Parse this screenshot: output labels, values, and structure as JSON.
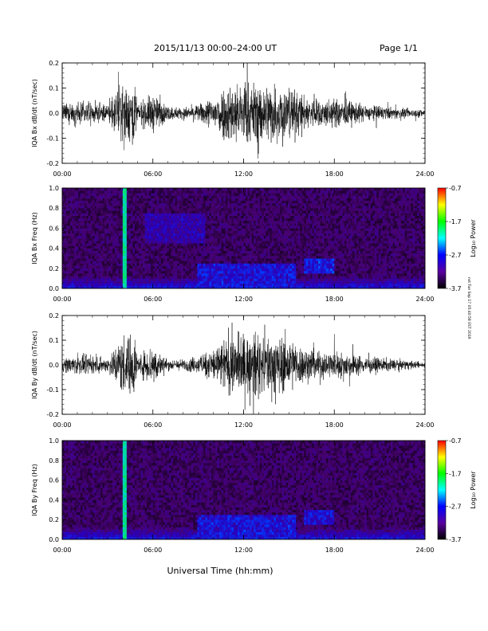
{
  "header": {
    "title": "2015/11/13  00:00–24:00 UT",
    "page": "Page 1/1"
  },
  "xaxis_label": "Universal Time (hh:mm)",
  "timestamp": "nst Tue Sep 17 05:40:58 EST 2019",
  "colorbar": {
    "label": "Log₁₀ Power",
    "ticks": [
      "-0.7",
      "-1.7",
      "-2.7",
      "-3.7"
    ],
    "colors": [
      "#ff0000",
      "#ffff00",
      "#00ff00",
      "#00ffff",
      "#0000ff",
      "#5a00a0",
      "#000000"
    ]
  },
  "chart_data": [
    {
      "type": "line",
      "title": "",
      "xlabel": "",
      "ylabel": "IQA Bx dB/dt (nT/sec)",
      "xlim": [
        "00:00",
        "24:00"
      ],
      "ylim": [
        -0.2,
        0.2
      ],
      "xticks": [
        "00:00",
        "06:00",
        "12:00",
        "18:00",
        "24:00"
      ],
      "yticks": [
        "0.2",
        "0.1",
        "0.0",
        "-0.1",
        "-0.2"
      ],
      "envelope": {
        "hours": [
          0,
          1,
          2,
          3,
          4,
          4.3,
          4.8,
          5,
          6,
          6.5,
          7,
          8,
          9,
          10,
          11,
          12,
          13,
          14,
          15,
          16,
          17,
          18,
          19,
          20,
          21,
          22,
          23,
          24
        ],
        "amplitude": [
          0.06,
          0.08,
          0.07,
          0.06,
          0.22,
          0.22,
          0.22,
          0.07,
          0.14,
          0.09,
          0.05,
          0.04,
          0.06,
          0.12,
          0.22,
          0.22,
          0.22,
          0.22,
          0.2,
          0.12,
          0.1,
          0.1,
          0.09,
          0.06,
          0.05,
          0.04,
          0.03,
          0.03
        ]
      }
    },
    {
      "type": "heatmap",
      "title": "",
      "xlabel": "",
      "ylabel": "IQA Bx Freq (Hz)",
      "xlim": [
        "00:00",
        "24:00"
      ],
      "ylim": [
        0.0,
        1.0
      ],
      "xticks": [
        "00:00",
        "06:00",
        "12:00",
        "18:00",
        "24:00"
      ],
      "yticks": [
        "1.0",
        "0.8",
        "0.6",
        "0.4",
        "0.2",
        "0.0"
      ],
      "zlim": [
        -3.7,
        -0.7
      ],
      "features": [
        {
          "hours": [
            4.0,
            4.2
          ],
          "freq": [
            0.0,
            1.0
          ],
          "level": -1.9
        },
        {
          "hours": [
            9.0,
            15.5
          ],
          "freq": [
            0.0,
            0.25
          ],
          "level": -2.6
        },
        {
          "hours": [
            5.5,
            9.5
          ],
          "freq": [
            0.45,
            0.75
          ],
          "level": -2.9
        },
        {
          "hours": [
            16.0,
            18.0
          ],
          "freq": [
            0.15,
            0.3
          ],
          "level": -2.5
        }
      ]
    },
    {
      "type": "line",
      "title": "",
      "xlabel": "",
      "ylabel": "IQA By dB/dt (nT/sec)",
      "xlim": [
        "00:00",
        "24:00"
      ],
      "ylim": [
        -0.2,
        0.2
      ],
      "xticks": [
        "00:00",
        "06:00",
        "12:00",
        "18:00",
        "24:00"
      ],
      "yticks": [
        "0.2",
        "0.1",
        "0.0",
        "-0.1",
        "-0.2"
      ],
      "envelope": {
        "hours": [
          0,
          1,
          2,
          3,
          4,
          4.3,
          4.8,
          5,
          6,
          6.5,
          7,
          8,
          9,
          10,
          11,
          12,
          13,
          14,
          15,
          16,
          17,
          18,
          19,
          20,
          21,
          22,
          23,
          24
        ],
        "amplitude": [
          0.05,
          0.07,
          0.06,
          0.05,
          0.22,
          0.22,
          0.22,
          0.06,
          0.16,
          0.08,
          0.04,
          0.04,
          0.06,
          0.13,
          0.22,
          0.22,
          0.22,
          0.22,
          0.2,
          0.13,
          0.1,
          0.1,
          0.09,
          0.06,
          0.05,
          0.04,
          0.03,
          0.02
        ]
      }
    },
    {
      "type": "heatmap",
      "title": "",
      "xlabel": "",
      "ylabel": "IQA By Freq (Hz)",
      "xlim": [
        "00:00",
        "24:00"
      ],
      "ylim": [
        0.0,
        1.0
      ],
      "xticks": [
        "00:00",
        "06:00",
        "12:00",
        "18:00",
        "24:00"
      ],
      "yticks": [
        "1.0",
        "0.8",
        "0.6",
        "0.4",
        "0.2",
        "0.0"
      ],
      "zlim": [
        -3.7,
        -0.7
      ],
      "features": [
        {
          "hours": [
            4.0,
            4.2
          ],
          "freq": [
            0.0,
            1.0
          ],
          "level": -1.9
        },
        {
          "hours": [
            9.0,
            15.5
          ],
          "freq": [
            0.0,
            0.25
          ],
          "level": -2.6
        },
        {
          "hours": [
            16.0,
            18.0
          ],
          "freq": [
            0.15,
            0.3
          ],
          "level": -2.6
        }
      ]
    }
  ]
}
